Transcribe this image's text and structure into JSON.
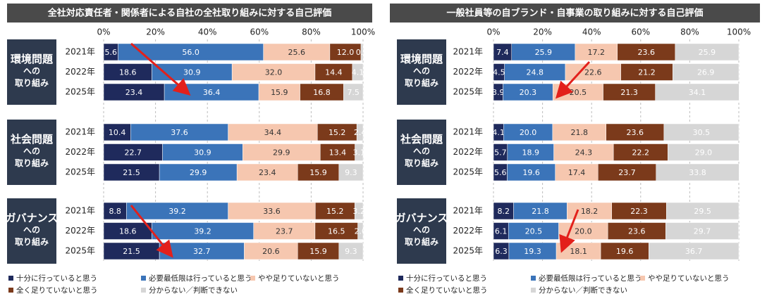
{
  "chart_data": [
    {
      "type": "stacked-bar-horizontal",
      "title": "全社対応責任者・関係者による自社の全社取り組みに対する自己評価",
      "groups": [
        [
          "環境問題",
          "への",
          "取り組み"
        ],
        [
          "社会問題",
          "への",
          "取り組み"
        ],
        [
          "ガバナンス",
          "への",
          "取り組み"
        ]
      ],
      "categories": [
        "2021年",
        "2022年",
        "2025年",
        "2021年",
        "2022年",
        "2025年",
        "2021年",
        "2022年",
        "2025年"
      ],
      "xlim": [
        0,
        100
      ],
      "xticks": [
        {
          "value": 0,
          "label": "0%"
        },
        {
          "value": 20,
          "label": "20%"
        },
        {
          "value": 40,
          "label": "40%"
        },
        {
          "value": 60,
          "label": "60%"
        },
        {
          "value": 80,
          "label": "80%"
        },
        {
          "value": 100,
          "label": "100%"
        }
      ],
      "grid": true,
      "series": [
        {
          "name": "十分に行っていると思う",
          "color": "#1f2a5c",
          "values": [
            5.6,
            18.6,
            23.4,
            10.4,
            22.7,
            21.5,
            8.8,
            18.6,
            21.5
          ],
          "value_labels": [
            "5.6",
            "18.6",
            "23.4",
            "10.4",
            "22.7",
            "21.5",
            "8.8",
            "18.6",
            "21.5"
          ]
        },
        {
          "name": "必要最低限は行っていると思う",
          "color": "#3b74b9",
          "values": [
            56.0,
            30.9,
            36.4,
            37.6,
            30.9,
            29.9,
            39.2,
            39.2,
            32.7
          ],
          "value_labels": [
            "56.0",
            "30.9",
            "36.4",
            "37.6",
            "30.9",
            "29.9",
            "39.2",
            "39.2",
            "32.7"
          ]
        },
        {
          "name": "やや足りていないと思う",
          "color": "#f6c7af",
          "values": [
            25.6,
            32.0,
            15.9,
            34.4,
            29.9,
            23.4,
            33.6,
            23.7,
            20.6
          ],
          "value_labels": [
            "25.6",
            "32.0",
            "15.9",
            "34.4",
            "29.9",
            "23.4",
            "33.6",
            "23.7",
            "20.6"
          ]
        },
        {
          "name": "全く足りていないと思う",
          "color": "#7b3a1b",
          "values": [
            12.0,
            14.4,
            16.8,
            15.2,
            13.4,
            15.9,
            15.2,
            16.5,
            15.9
          ],
          "value_labels": [
            "12.0",
            "14.4",
            "16.8",
            "15.2",
            "13.4",
            "15.9",
            "15.2",
            "16.5",
            "15.9"
          ]
        },
        {
          "name": "分からない／判断できない",
          "color": "#d6d6d6",
          "values": [
            0.8,
            4.1,
            7.5,
            2.4,
            3.1,
            9.3,
            3.2,
            2.0,
            9.3
          ],
          "value_labels": [
            "0.8",
            "4.1",
            "7.5",
            "2.4",
            "3.1",
            "9.3",
            "3.2",
            "2.0",
            "9.3"
          ]
        }
      ]
    },
    {
      "type": "stacked-bar-horizontal",
      "title": "一般社員等の自ブランド・自事業の取り組みに対する自己評価",
      "groups": [
        [
          "環境問題",
          "への",
          "取り組み"
        ],
        [
          "社会問題",
          "への",
          "取り組み"
        ],
        [
          "ガバナンス",
          "への",
          "取り組み"
        ]
      ],
      "categories": [
        "2021年",
        "2022年",
        "2025年",
        "2021年",
        "2022年",
        "2025年",
        "2021年",
        "2022年",
        "2025年"
      ],
      "xlim": [
        0,
        100
      ],
      "xticks": [
        {
          "value": 0,
          "label": "0%"
        },
        {
          "value": 20,
          "label": "20%"
        },
        {
          "value": 40,
          "label": "40%"
        },
        {
          "value": 60,
          "label": "60%"
        },
        {
          "value": 80,
          "label": "80%"
        },
        {
          "value": 100,
          "label": "100%"
        }
      ],
      "grid": true,
      "series": [
        {
          "name": "十分に行っていると思う",
          "color": "#1f2a5c",
          "values": [
            7.4,
            4.5,
            3.9,
            4.1,
            5.7,
            5.6,
            8.2,
            6.1,
            6.3
          ],
          "value_labels": [
            "7.4",
            "4.5",
            "3.9",
            "4.1",
            "5.7",
            "5.6",
            "8.2",
            "6.1",
            "6.3"
          ]
        },
        {
          "name": "必要最低限は行っていると思う",
          "color": "#3b74b9",
          "values": [
            25.9,
            24.8,
            20.3,
            20.0,
            18.9,
            19.6,
            21.8,
            20.5,
            19.3
          ],
          "value_labels": [
            "25.9",
            "24.8",
            "20.3",
            "20.0",
            "18.9",
            "19.6",
            "21.8",
            "20.5",
            "19.3"
          ]
        },
        {
          "name": "やや足りていないと思う",
          "color": "#f6c7af",
          "values": [
            17.2,
            22.6,
            20.5,
            21.8,
            24.3,
            17.4,
            18.2,
            20.0,
            18.1
          ],
          "value_labels": [
            "17.2",
            "22.6",
            "20.5",
            "21.8",
            "24.3",
            "17.4",
            "18.2",
            "20.0",
            "18.1"
          ]
        },
        {
          "name": "全く足りていないと思う",
          "color": "#7b3a1b",
          "values": [
            23.6,
            21.2,
            21.3,
            23.6,
            22.2,
            23.7,
            22.3,
            23.6,
            19.6
          ],
          "value_labels": [
            "23.6",
            "21.2",
            "21.3",
            "23.6",
            "22.2",
            "23.7",
            "22.3",
            "23.6",
            "19.6"
          ]
        },
        {
          "name": "分からない／判断できない",
          "color": "#d6d6d6",
          "values": [
            25.9,
            26.9,
            34.1,
            30.5,
            29.0,
            33.8,
            29.5,
            29.7,
            36.7
          ],
          "value_labels": [
            "25.9",
            "26.9",
            "34.1",
            "30.5",
            "29.0",
            "33.8",
            "29.5",
            "29.7",
            "36.7"
          ]
        }
      ]
    }
  ]
}
